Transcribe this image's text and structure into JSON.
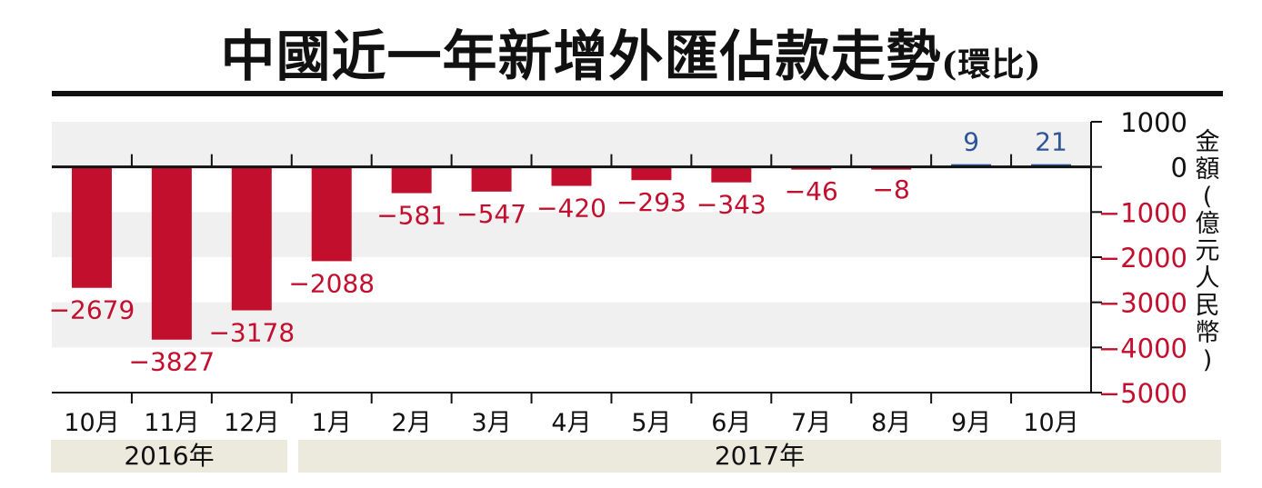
{
  "title": "中國近一年新增外匯佔款走勢",
  "title_suffix": "(環比)",
  "ylabel_chars": [
    "金",
    "額",
    "(",
    "億",
    "元",
    "人",
    "民",
    "幣",
    ")"
  ],
  "years": [
    "2016年",
    "2017年"
  ],
  "colors": {
    "negative": "#c30f2e",
    "positive": "#2f5597",
    "band": "#f0f0f0",
    "axis": "#111111"
  },
  "chart_data": {
    "type": "bar",
    "title": "中國近一年新增外匯佔款走勢(環比)",
    "ylabel": "金額(億元人民幣)",
    "xlabel": "",
    "categories": [
      "10月",
      "11月",
      "12月",
      "1月",
      "2月",
      "3月",
      "4月",
      "5月",
      "6月",
      "7月",
      "8月",
      "9月",
      "10月"
    ],
    "values": [
      -2679,
      -3827,
      -3178,
      -2088,
      -581,
      -547,
      -420,
      -293,
      -343,
      -46,
      -8,
      9,
      21
    ],
    "value_labels": [
      "−2679",
      "−3827",
      "−3178",
      "−2088",
      "−581",
      "−547",
      "−420",
      "−293",
      "−343",
      "−46",
      "−8",
      "9",
      "21"
    ],
    "ylim": [
      -5000,
      1000
    ],
    "yticks": [
      1000,
      0,
      -1000,
      -2000,
      -3000,
      -4000,
      -5000
    ],
    "ytick_labels": [
      "1000",
      "0",
      "−1000",
      "−2000",
      "−3000",
      "−4000",
      "−5000"
    ],
    "grid": "alternating bands",
    "y_axis_position": "right"
  }
}
